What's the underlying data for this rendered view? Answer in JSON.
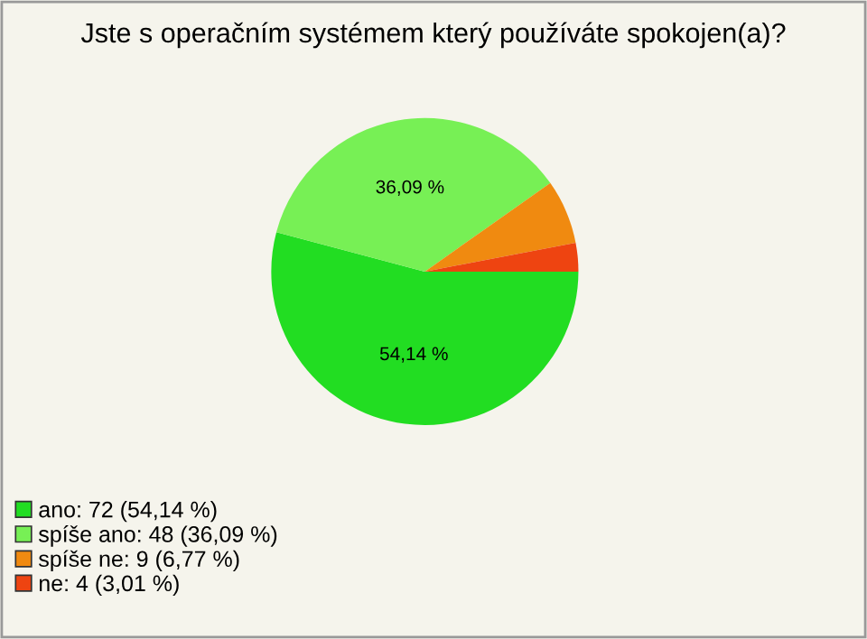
{
  "chart_data": {
    "type": "pie",
    "title": "Jste s operačním systémem který používáte spokojen(a)?",
    "categories": [
      "ano: 72 (54,14 %)",
      "spíše ano: 48 (36,09 %)",
      "spíše ne: 9 (6,77 %)",
      "ne: 4 (3,01 %)"
    ],
    "values": [
      54.14,
      36.09,
      6.77,
      3.01
    ],
    "colors": [
      "#22dd22",
      "#77f055",
      "#f08a10",
      "#ee4411"
    ],
    "value_labels": [
      "54,14 %",
      "36,09 %",
      null,
      null
    ],
    "legend": "bottom left"
  }
}
